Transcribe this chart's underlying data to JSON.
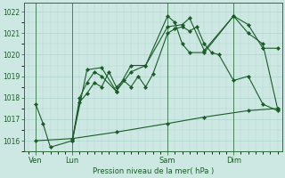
{
  "background_color": "#cde8e2",
  "grid_color": "#b0d4ce",
  "line_color": "#1a5c28",
  "xlabel": "Pression niveau de la mer( hPa )",
  "ylim": [
    1015.5,
    1022.4
  ],
  "yticks": [
    1016,
    1017,
    1018,
    1019,
    1020,
    1021,
    1022
  ],
  "xlim": [
    -0.3,
    17.3
  ],
  "day_labels": [
    "Ven",
    "Lun",
    "Sam",
    "Dim"
  ],
  "day_positions": [
    0.5,
    3.0,
    9.5,
    14.0
  ],
  "vline_positions": [
    0.5,
    3.0,
    9.5,
    14.0
  ],
  "lines": [
    {
      "x": [
        0.5,
        1.0,
        1.5,
        3.0,
        3.5,
        4.0,
        4.5,
        5.0,
        5.5,
        6.0,
        6.5,
        7.0,
        7.5,
        8.0,
        8.5,
        9.5,
        10.0,
        10.5,
        11.0,
        11.5,
        12.0,
        12.5,
        13.0,
        14.0,
        15.0,
        16.0,
        17.0
      ],
      "y": [
        1017.7,
        1016.8,
        1015.7,
        1016.0,
        1017.8,
        1018.2,
        1018.7,
        1018.5,
        1019.2,
        1018.5,
        1018.8,
        1018.5,
        1019.0,
        1018.5,
        1019.1,
        1021.0,
        1021.2,
        1021.3,
        1021.1,
        1021.3,
        1020.5,
        1020.1,
        1020.0,
        1018.8,
        1019.0,
        1017.7,
        1017.4
      ]
    },
    {
      "x": [
        3.0,
        3.5,
        4.0,
        4.5,
        5.0,
        6.0,
        7.0,
        8.0,
        9.5,
        10.0,
        10.5,
        11.0,
        12.0,
        14.0,
        15.0,
        16.0,
        17.0
      ],
      "y": [
        1016.0,
        1018.0,
        1018.7,
        1019.2,
        1019.0,
        1018.3,
        1019.5,
        1019.5,
        1021.8,
        1021.5,
        1020.5,
        1020.1,
        1020.1,
        1021.8,
        1021.0,
        1020.5,
        1017.5
      ]
    },
    {
      "x": [
        3.0,
        4.0,
        5.0,
        6.0,
        7.0,
        8.0,
        9.5,
        10.5,
        11.0,
        12.0,
        14.0,
        15.0,
        16.0,
        17.0
      ],
      "y": [
        1016.0,
        1019.3,
        1019.4,
        1018.3,
        1019.2,
        1019.5,
        1021.3,
        1021.4,
        1021.7,
        1020.2,
        1021.8,
        1021.4,
        1020.3,
        1020.3
      ]
    },
    {
      "x": [
        0.5,
        3.0,
        6.0,
        9.5,
        12.0,
        15.0,
        17.0
      ],
      "y": [
        1016.0,
        1016.1,
        1016.4,
        1016.8,
        1017.1,
        1017.4,
        1017.5
      ]
    }
  ]
}
